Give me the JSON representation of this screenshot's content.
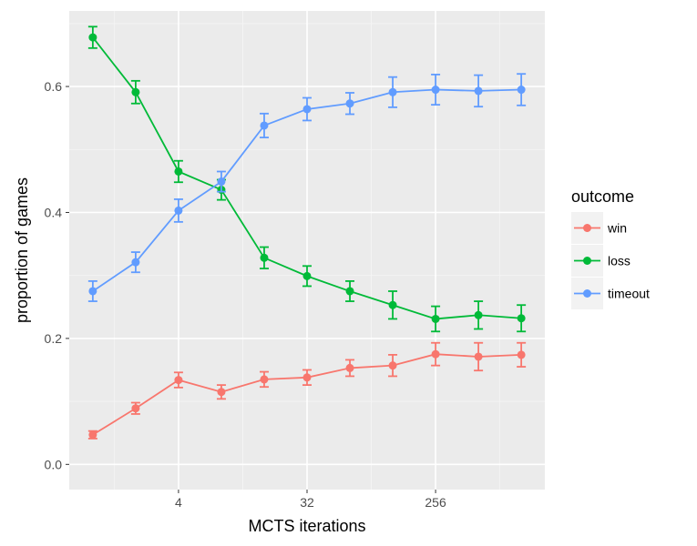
{
  "chart_data": {
    "type": "line",
    "xlabel": "MCTS iterations",
    "ylabel": "proportion of games",
    "x_scale": "log2",
    "x": [
      1,
      2,
      4,
      8,
      16,
      32,
      64,
      128,
      256,
      512,
      1024
    ],
    "x_ticks": [
      4,
      32,
      256
    ],
    "x_tick_labels": [
      "4",
      "32",
      "256"
    ],
    "y_ticks": [
      0.0,
      0.2,
      0.4,
      0.6
    ],
    "y_tick_labels": [
      "0.0",
      "0.2",
      "0.4",
      "0.6"
    ],
    "ylim": [
      -0.04,
      0.72
    ],
    "grid": true,
    "legend": {
      "title": "outcome",
      "position": "right"
    },
    "series": [
      {
        "name": "win",
        "color": "#F8766D",
        "values": [
          0.047,
          0.089,
          0.134,
          0.115,
          0.135,
          0.138,
          0.153,
          0.157,
          0.175,
          0.171,
          0.174
        ],
        "errors": [
          0.006,
          0.009,
          0.012,
          0.011,
          0.012,
          0.012,
          0.013,
          0.017,
          0.018,
          0.022,
          0.019
        ]
      },
      {
        "name": "loss",
        "color": "#00BA38",
        "values": [
          0.678,
          0.591,
          0.465,
          0.436,
          0.328,
          0.299,
          0.275,
          0.253,
          0.231,
          0.237,
          0.232
        ],
        "errors": [
          0.017,
          0.018,
          0.017,
          0.016,
          0.017,
          0.016,
          0.016,
          0.022,
          0.02,
          0.022,
          0.021
        ]
      },
      {
        "name": "timeout",
        "color": "#619CFF",
        "values": [
          0.275,
          0.321,
          0.403,
          0.449,
          0.538,
          0.564,
          0.573,
          0.591,
          0.595,
          0.593,
          0.595
        ],
        "errors": [
          0.016,
          0.016,
          0.018,
          0.016,
          0.019,
          0.018,
          0.017,
          0.024,
          0.024,
          0.025,
          0.025
        ]
      }
    ]
  }
}
